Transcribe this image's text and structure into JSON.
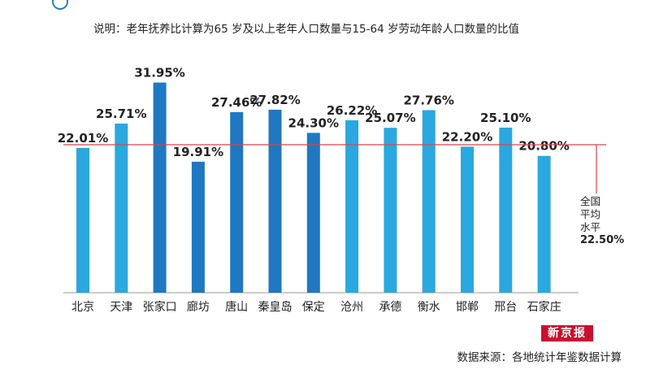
{
  "note": "说明：老年抚养比计算为65 岁及以上老年人口数量与15-64 岁劳动年龄人口数量的比值",
  "source": "数据来源：各地统计年鉴数据计算",
  "brand": "新京报",
  "avg_label_lines": [
    "全国",
    "平均",
    "水平"
  ],
  "avg_value_label": "22.50%",
  "colors": {
    "light": "#2aa8df",
    "dark": "#1f78c1",
    "avg_line": "#d9434d",
    "axis": "#999999"
  },
  "chart_data": {
    "type": "bar",
    "title": "",
    "xlabel": "",
    "ylabel": "",
    "ylim": [
      0,
      35
    ],
    "categories": [
      "北京",
      "天津",
      "张家口",
      "廊坊",
      "唐山",
      "秦皇岛",
      "保定",
      "沧州",
      "承德",
      "衡水",
      "邯郸",
      "邢台",
      "石家庄"
    ],
    "values": [
      22.01,
      25.71,
      31.95,
      19.91,
      27.46,
      27.82,
      24.3,
      26.22,
      25.07,
      27.76,
      22.2,
      25.1,
      20.8
    ],
    "value_labels": [
      "22.01%",
      "25.71%",
      "31.95%",
      "19.91%",
      "27.46%",
      "27.82%",
      "24.30%",
      "26.22%",
      "25.07%",
      "27.76%",
      "22.20%",
      "25.10%",
      "20.80%"
    ],
    "bar_shades": [
      "light",
      "light",
      "dark",
      "dark",
      "dark",
      "dark",
      "dark",
      "light",
      "light",
      "light",
      "light",
      "light",
      "light"
    ],
    "reference_line": 22.5,
    "grid": false,
    "legend": "none"
  }
}
